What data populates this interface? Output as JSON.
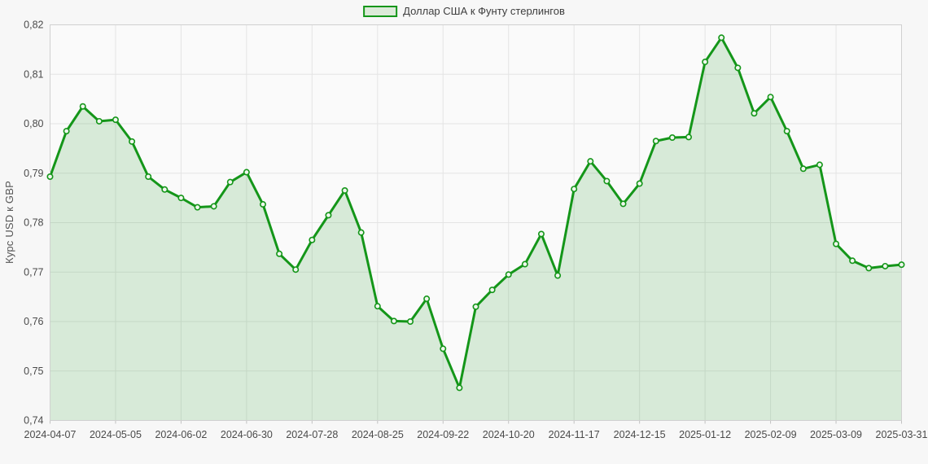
{
  "chart_data": {
    "type": "area",
    "legend": "Доллар США к Фунту стерлингов",
    "ylabel": "Курс USD к GBP",
    "xlabel": "",
    "decimal_separator": ",",
    "grid": true,
    "legend_position": "top-center",
    "ylim": [
      0.74,
      0.82
    ],
    "y_ticks": [
      0.74,
      0.75,
      0.76,
      0.77,
      0.78,
      0.79,
      0.8,
      0.81,
      0.82
    ],
    "x": [
      "2024-04-07",
      "2024-04-14",
      "2024-04-21",
      "2024-04-28",
      "2024-05-05",
      "2024-05-12",
      "2024-05-19",
      "2024-05-26",
      "2024-06-02",
      "2024-06-09",
      "2024-06-16",
      "2024-06-23",
      "2024-06-30",
      "2024-07-07",
      "2024-07-14",
      "2024-07-21",
      "2024-07-28",
      "2024-08-04",
      "2024-08-11",
      "2024-08-18",
      "2024-08-25",
      "2024-09-01",
      "2024-09-08",
      "2024-09-15",
      "2024-09-22",
      "2024-09-29",
      "2024-10-06",
      "2024-10-13",
      "2024-10-20",
      "2024-10-27",
      "2024-11-03",
      "2024-11-10",
      "2024-11-17",
      "2024-11-24",
      "2024-12-01",
      "2024-12-08",
      "2024-12-15",
      "2024-12-22",
      "2024-12-29",
      "2025-01-05",
      "2025-01-12",
      "2025-01-19",
      "2025-01-26",
      "2025-02-02",
      "2025-02-09",
      "2025-02-16",
      "2025-02-23",
      "2025-03-02",
      "2025-03-09",
      "2025-03-16",
      "2025-03-23",
      "2025-03-30",
      "2025-03-31"
    ],
    "values": [
      0.7893,
      0.7985,
      0.8035,
      0.8005,
      0.8008,
      0.7964,
      0.7893,
      0.7867,
      0.785,
      0.7831,
      0.7833,
      0.7882,
      0.7902,
      0.7837,
      0.7737,
      0.7705,
      0.7765,
      0.7815,
      0.7865,
      0.778,
      0.7631,
      0.7601,
      0.76,
      0.7646,
      0.7545,
      0.7466,
      0.763,
      0.7664,
      0.7695,
      0.7716,
      0.7777,
      0.7693,
      0.7868,
      0.7924,
      0.7884,
      0.7838,
      0.7879,
      0.7965,
      0.7972,
      0.7973,
      0.8125,
      0.8174,
      0.8113,
      0.8021,
      0.8054,
      0.7985,
      0.7909,
      0.7917,
      0.7757,
      0.7723,
      0.7708,
      0.7712,
      0.7715
    ],
    "x_tick_indices": [
      0,
      4,
      8,
      12,
      16,
      20,
      24,
      28,
      32,
      36,
      40,
      44,
      48,
      52
    ],
    "x_tick_labels": [
      "2024-04-07",
      "2024-05-05",
      "2024-06-02",
      "2024-06-30",
      "2024-07-28",
      "2024-08-25",
      "2024-09-22",
      "2024-10-20",
      "2024-11-17",
      "2024-12-15",
      "2025-01-12",
      "2025-02-09",
      "2025-03-09",
      "2025-03-31"
    ],
    "colors": {
      "line": "#149619",
      "fill": "rgba(20,150,25,0.15)",
      "marker_fill": "#f0f7ee",
      "swatch_fill": "#dcead9",
      "grid": "#e4e4e4",
      "plot_border": "#d0d0d0",
      "tick_mark": "#c2c2c2",
      "tick_text": "#4a4a4a",
      "legend_text": "#3e3e3e",
      "plot_bg": "#fafafa",
      "page_bg": "#f7f7f7"
    }
  }
}
